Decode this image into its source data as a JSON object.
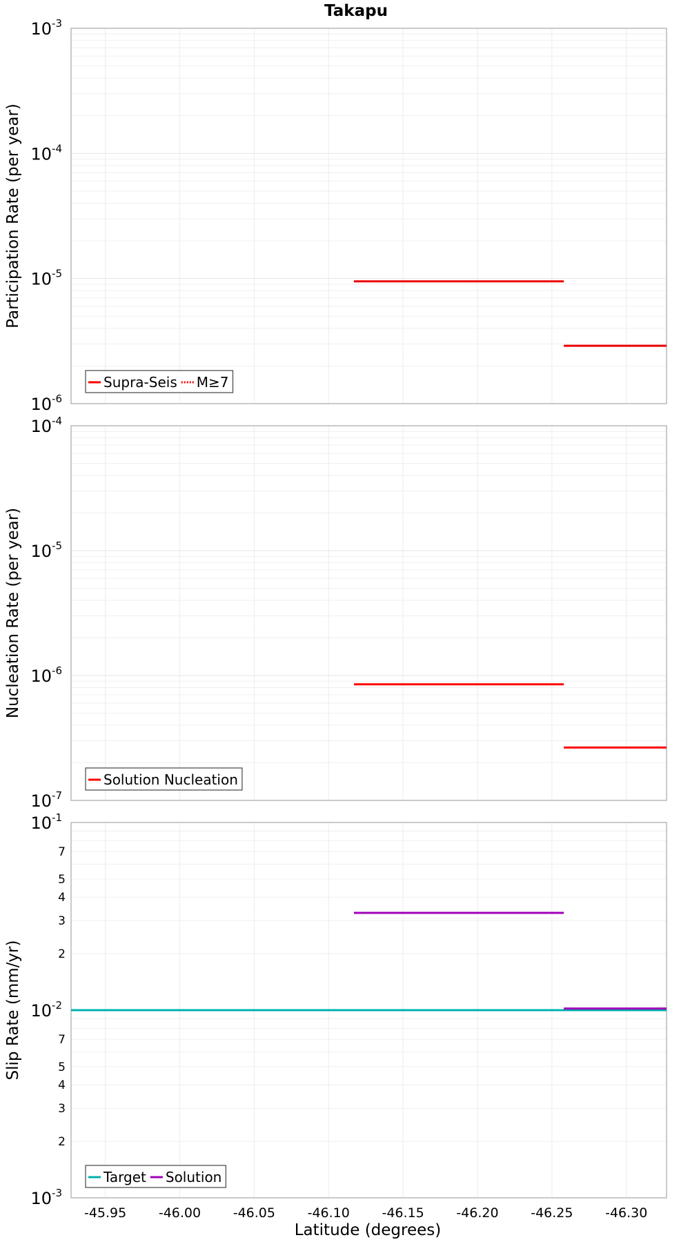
{
  "chart_data": {
    "type": "line",
    "title": "Takapu",
    "xlabel": "Latitude (degrees)",
    "xlim": [
      -45.927,
      -46.327
    ],
    "xticks": [
      -45.95,
      -46.0,
      -46.05,
      -46.1,
      -46.15,
      -46.2,
      -46.25,
      -46.3
    ],
    "xtick_labels": [
      "-45.95",
      "-46.00",
      "-46.05",
      "-46.10",
      "-46.15",
      "-46.20",
      "-46.25",
      "-46.30"
    ],
    "panels": [
      {
        "name": "participation",
        "ylabel": "Participation Rate (per year)",
        "scale": "log",
        "ylim": [
          1e-06,
          0.001
        ],
        "major_exponents": [
          -6,
          -5,
          -4,
          -3
        ],
        "minor_tick_labels": [],
        "legend": [
          {
            "label": "Supra-Seis",
            "style": "solid",
            "color": "#ff0000"
          },
          {
            "label": "M≥7",
            "style": "dotted",
            "color": "#ff0000"
          }
        ],
        "series": [
          {
            "style": "solid",
            "color": "#ff0000",
            "segments": [
              {
                "x": [
                  -46.117,
                  -46.258
                ],
                "y": 9.5e-06
              },
              {
                "x": [
                  -46.258,
                  -46.327
                ],
                "y": 2.9e-06
              }
            ]
          },
          {
            "style": "dotted",
            "color": "#cc0000",
            "segments": [
              {
                "x": [
                  -46.117,
                  -46.258
                ],
                "y": 9.5e-06
              },
              {
                "x": [
                  -46.258,
                  -46.327
                ],
                "y": 2.9e-06
              }
            ]
          }
        ]
      },
      {
        "name": "nucleation",
        "ylabel": "Nucleation Rate (per year)",
        "scale": "log",
        "ylim": [
          1e-07,
          0.0001
        ],
        "major_exponents": [
          -7,
          -6,
          -5,
          -4
        ],
        "minor_tick_labels": [],
        "legend": [
          {
            "label": "Solution Nucleation",
            "style": "solid",
            "color": "#ff0000"
          }
        ],
        "series": [
          {
            "style": "solid",
            "color": "#ff0000",
            "segments": [
              {
                "x": [
                  -46.117,
                  -46.258
                ],
                "y": 8.5e-07
              },
              {
                "x": [
                  -46.258,
                  -46.327
                ],
                "y": 2.65e-07
              }
            ]
          }
        ]
      },
      {
        "name": "slip",
        "ylabel": "Slip Rate (mm/yr)",
        "scale": "log",
        "ylim": [
          0.001,
          0.1
        ],
        "major_exponents": [
          -3,
          -2,
          -1
        ],
        "minor_tick_labels": [
          {
            "value": 0.002,
            "label": "2"
          },
          {
            "value": 0.003,
            "label": "3"
          },
          {
            "value": 0.004,
            "label": "4"
          },
          {
            "value": 0.005,
            "label": "5"
          },
          {
            "value": 0.007,
            "label": "7"
          },
          {
            "value": 0.02,
            "label": "2"
          },
          {
            "value": 0.03,
            "label": "3"
          },
          {
            "value": 0.04,
            "label": "4"
          },
          {
            "value": 0.05,
            "label": "5"
          },
          {
            "value": 0.07,
            "label": "7"
          }
        ],
        "legend": [
          {
            "label": "Target",
            "style": "solid",
            "color": "#00b0b0"
          },
          {
            "label": "Solution",
            "style": "solid",
            "color": "#a000b8"
          }
        ],
        "series": [
          {
            "style": "solid",
            "color": "#00b0b0",
            "segments": [
              {
                "x": [
                  -45.927,
                  -46.327
                ],
                "y": 0.01
              }
            ]
          },
          {
            "style": "solid",
            "color": "#a000b8",
            "segments": [
              {
                "x": [
                  -46.117,
                  -46.258
                ],
                "y": 0.033
              },
              {
                "x": [
                  -46.258,
                  -46.327
                ],
                "y": 0.0102
              }
            ]
          }
        ]
      }
    ]
  }
}
